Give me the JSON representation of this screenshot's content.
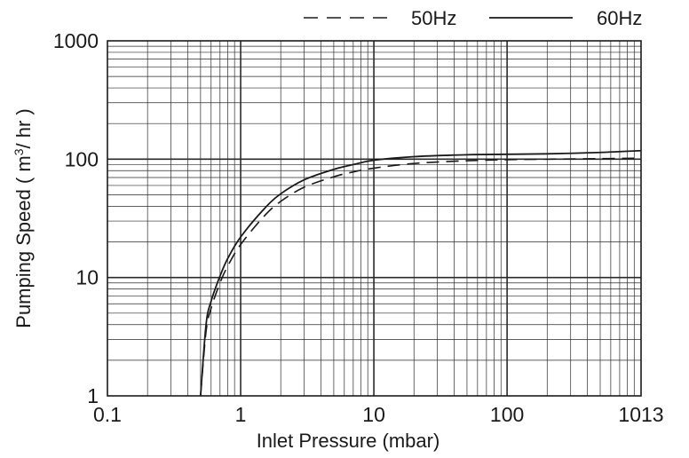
{
  "chart_data": {
    "type": "line",
    "xscale": "log",
    "yscale": "log",
    "xlim": [
      0.1,
      1013
    ],
    "ylim": [
      1,
      1000
    ],
    "grid": true,
    "legend_position": "top-right",
    "xlabel": "Inlet Pressure (mbar)",
    "ylabel_parts": [
      "Pumping Speed ( m",
      "3",
      "/ hr )"
    ],
    "x_ticks": [
      {
        "value": 0.1,
        "label": "0.1"
      },
      {
        "value": 1,
        "label": "1"
      },
      {
        "value": 10,
        "label": "10"
      },
      {
        "value": 100,
        "label": "100"
      },
      {
        "value": 1013,
        "label": "1013"
      }
    ],
    "y_ticks": [
      {
        "value": 1,
        "label": "1"
      },
      {
        "value": 10,
        "label": "10"
      },
      {
        "value": 100,
        "label": "100"
      },
      {
        "value": 1000,
        "label": "1000"
      }
    ],
    "series": [
      {
        "name": "50Hz",
        "style": "dashed",
        "x": [
          0.5,
          0.55,
          0.6,
          0.7,
          0.8,
          1.0,
          1.5,
          2,
          3,
          5,
          7,
          10,
          20,
          50,
          100,
          200,
          500,
          1013
        ],
        "y": [
          1,
          3.5,
          5.5,
          9,
          12.5,
          19,
          33,
          44,
          58,
          71,
          78,
          84,
          92,
          97,
          99,
          100,
          101,
          102
        ]
      },
      {
        "name": "60Hz",
        "style": "solid",
        "x": [
          0.5,
          0.55,
          0.6,
          0.7,
          0.8,
          1.0,
          1.5,
          2,
          3,
          5,
          7,
          10,
          20,
          50,
          100,
          200,
          500,
          1013
        ],
        "y": [
          1,
          4,
          6.3,
          10.3,
          14.5,
          22,
          38,
          51,
          67,
          82,
          90,
          98,
          105,
          109,
          110,
          111,
          114,
          118
        ]
      }
    ],
    "line_color": "#1a1a1a",
    "grid_color": "#2a2a2a"
  }
}
